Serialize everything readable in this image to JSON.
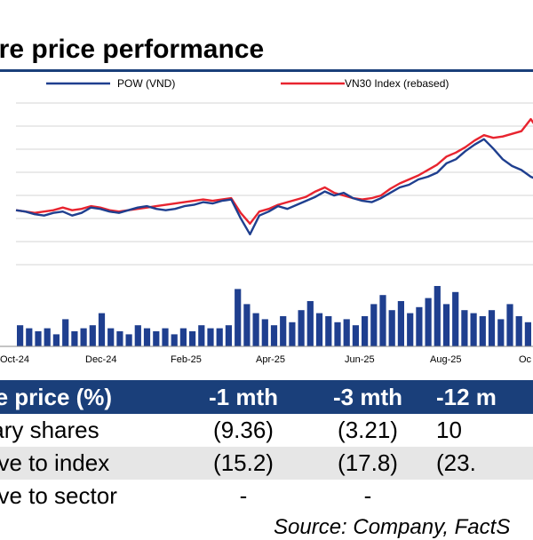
{
  "title": "are price performance",
  "chart_data": {
    "type": "line",
    "legend": [
      {
        "name": "POW (VND)",
        "color": "#1f3f8f"
      },
      {
        "name": "VN30 Index (rebased)",
        "color": "#e8242f"
      }
    ],
    "x_ticks": [
      "Oct-24",
      "Dec-24",
      "Feb-25",
      "Apr-25",
      "Jun-25",
      "Aug-25",
      "Oc"
    ],
    "grid": true,
    "series": [
      {
        "name": "POW (VND)",
        "color": "#1f3f8f",
        "values": [
          10.0,
          9.9,
          9.7,
          9.6,
          9.8,
          9.9,
          9.6,
          9.8,
          10.2,
          10.1,
          9.9,
          9.8,
          10.0,
          10.2,
          10.3,
          10.1,
          10.0,
          10.1,
          10.3,
          10.4,
          10.6,
          10.5,
          10.7,
          10.8,
          9.4,
          8.2,
          9.6,
          9.9,
          10.3,
          10.1,
          10.4,
          10.7,
          11.0,
          11.4,
          11.1,
          11.3,
          10.9,
          10.7,
          10.6,
          10.9,
          11.3,
          11.7,
          11.9,
          12.3,
          12.5,
          12.8,
          13.5,
          13.8,
          14.4,
          14.9,
          15.3,
          14.6,
          13.8,
          13.3,
          13.0,
          12.5,
          12.2
        ]
      },
      {
        "name": "VN30 Index (rebased)",
        "color": "#e8242f",
        "values": [
          10.0,
          9.9,
          9.8,
          9.9,
          10.0,
          10.2,
          10.0,
          10.1,
          10.3,
          10.2,
          10.0,
          9.9,
          10.0,
          10.1,
          10.2,
          10.3,
          10.4,
          10.5,
          10.6,
          10.7,
          10.8,
          10.7,
          10.8,
          10.9,
          9.8,
          9.0,
          9.9,
          10.1,
          10.4,
          10.6,
          10.8,
          11.0,
          11.4,
          11.7,
          11.3,
          11.1,
          10.9,
          10.8,
          10.9,
          11.1,
          11.6,
          12.0,
          12.3,
          12.6,
          13.0,
          13.4,
          14.0,
          14.3,
          14.7,
          15.2,
          15.6,
          15.4,
          15.5,
          15.7,
          15.9,
          16.8,
          15.8
        ]
      }
    ],
    "volume": [
      0.35,
      0.3,
      0.25,
      0.3,
      0.2,
      0.45,
      0.25,
      0.3,
      0.35,
      0.55,
      0.3,
      0.25,
      0.2,
      0.35,
      0.3,
      0.25,
      0.3,
      0.2,
      0.3,
      0.25,
      0.35,
      0.3,
      0.3,
      0.35,
      0.95,
      0.7,
      0.55,
      0.45,
      0.35,
      0.5,
      0.4,
      0.6,
      0.75,
      0.55,
      0.5,
      0.4,
      0.45,
      0.35,
      0.5,
      0.7,
      0.85,
      0.6,
      0.75,
      0.55,
      0.65,
      0.8,
      1.0,
      0.7,
      0.9,
      0.6,
      0.55,
      0.5,
      0.6,
      0.45,
      0.7,
      0.5,
      0.4
    ]
  },
  "table": {
    "header": [
      "are price (%)",
      "-1 mth",
      "-3 mth",
      "-12 m"
    ],
    "rows": [
      [
        "inary shares",
        "(9.36)",
        "(3.21)",
        "10"
      ],
      [
        "ative to index",
        "(15.2)",
        "(17.8)",
        "(23."
      ],
      [
        "ative to sector",
        "-",
        "-",
        ""
      ]
    ]
  },
  "source": "Source: Company, FactS"
}
